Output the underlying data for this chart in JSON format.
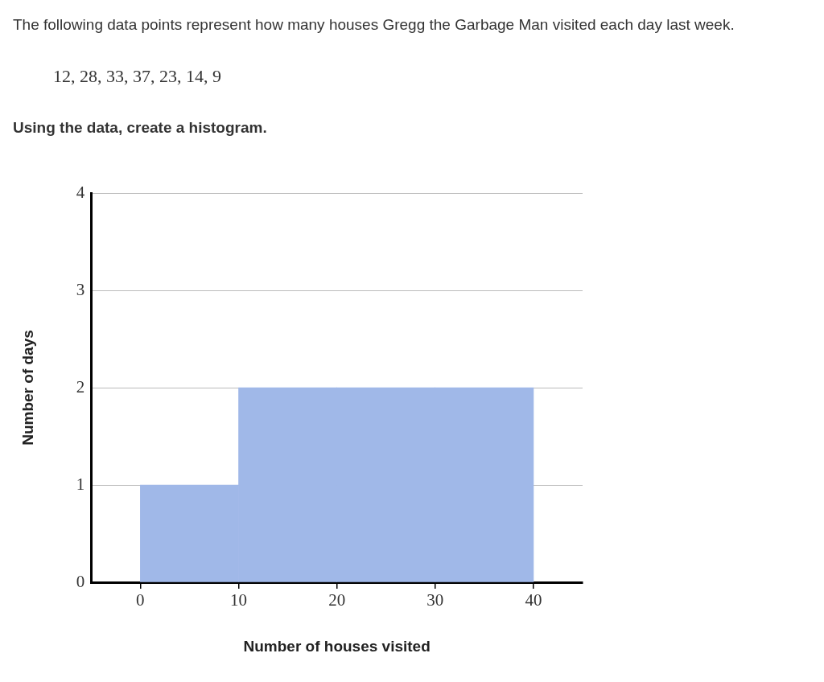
{
  "chart_data": {
    "type": "histogram",
    "title": "The following data points represent how many houses Gregg the Garbage Man visited each day last week.",
    "subtitle": "12, 28, 33, 37, 23, 14, 9",
    "annotations": [
      "Using the data, create a histogram."
    ],
    "xlabel": "Number of houses visited",
    "ylabel": "Number of days",
    "bins": [
      0,
      10,
      20,
      30,
      40
    ],
    "values": [
      1,
      2,
      2,
      2
    ],
    "color": "#a0b8e8",
    "xlim": [
      -5,
      45
    ],
    "xticks": [
      0,
      10,
      20,
      30,
      40
    ],
    "ylim": [
      0,
      4
    ],
    "yticks": [
      0,
      1,
      2,
      3,
      4
    ],
    "grid": "y",
    "legend": false
  }
}
